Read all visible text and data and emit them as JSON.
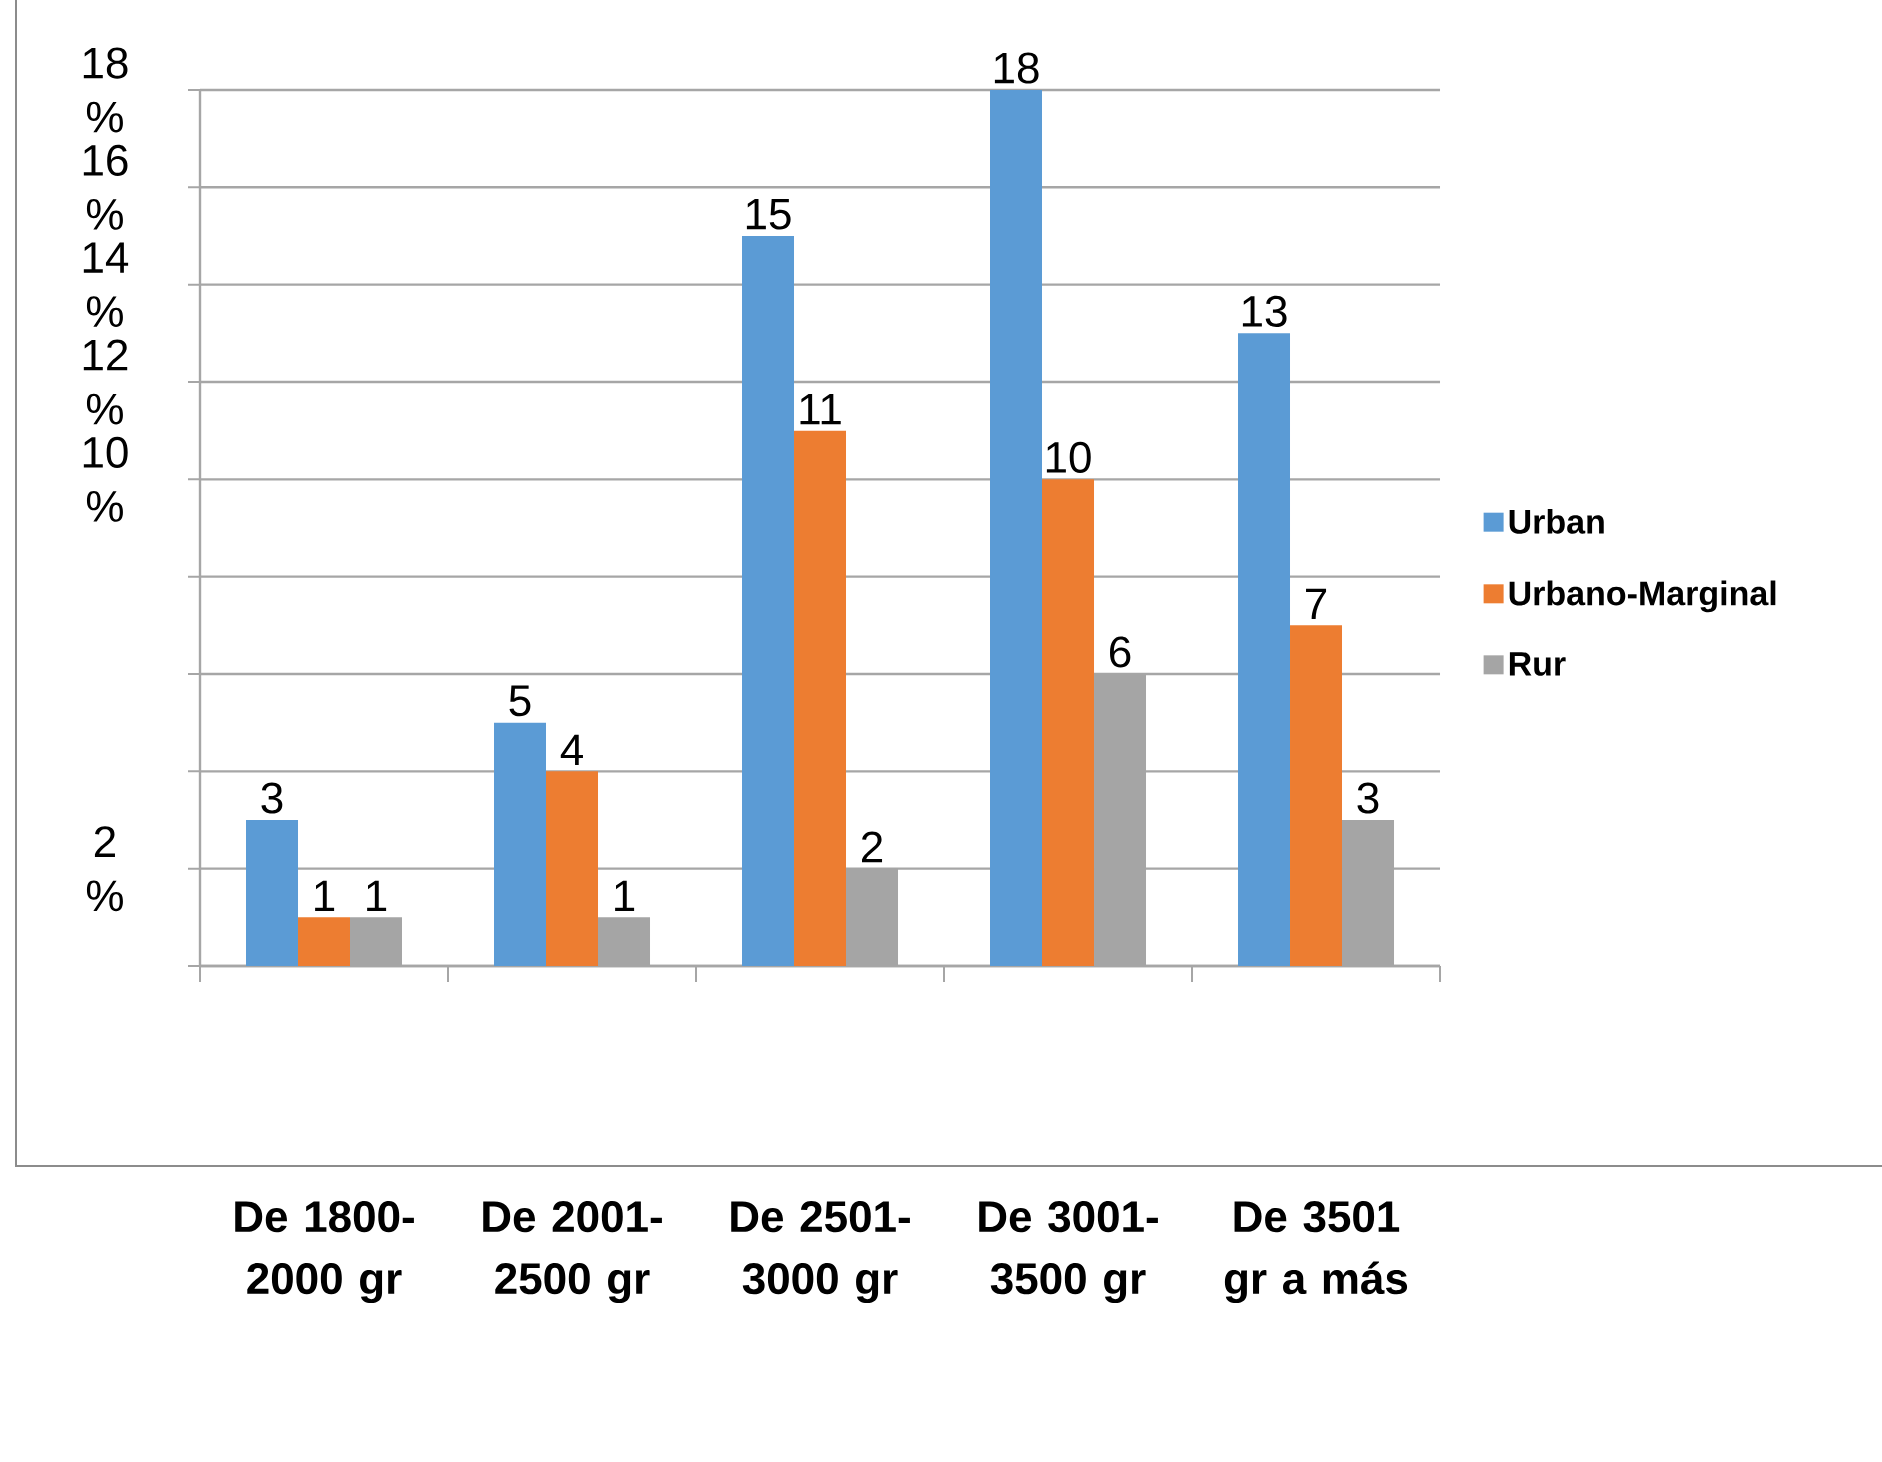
{
  "chart_data": {
    "type": "bar",
    "categories": [
      "De 1800-2000 gr",
      "De 2001-2500 gr",
      "De 2501-3000 gr",
      "De 3001-3500 gr",
      "De 3501 gr a más"
    ],
    "series": [
      {
        "name": "Urban",
        "color": "#5b9bd5",
        "values": [
          3,
          5,
          15,
          18,
          13
        ]
      },
      {
        "name": "Urbano-Marginal",
        "color": "#ed7d31",
        "values": [
          1,
          4,
          11,
          10,
          7
        ]
      },
      {
        "name": "Rur",
        "color": "#a5a5a5",
        "values": [
          1,
          1,
          2,
          6,
          3
        ]
      }
    ],
    "ylim": [
      0,
      18
    ],
    "yticks": [
      {
        "value": 0,
        "label": null
      },
      {
        "value": 2,
        "label": "2 %"
      },
      {
        "value": 4,
        "label": null
      },
      {
        "value": 6,
        "label": null
      },
      {
        "value": 8,
        "label": null
      },
      {
        "value": 10,
        "label": "10 %"
      },
      {
        "value": 12,
        "label": "12 %"
      },
      {
        "value": 14,
        "label": "14 %"
      },
      {
        "value": 16,
        "label": "16 %"
      },
      {
        "value": 18,
        "label": "18 %"
      }
    ],
    "grid": "y",
    "legend": "right",
    "data_labels": true
  }
}
